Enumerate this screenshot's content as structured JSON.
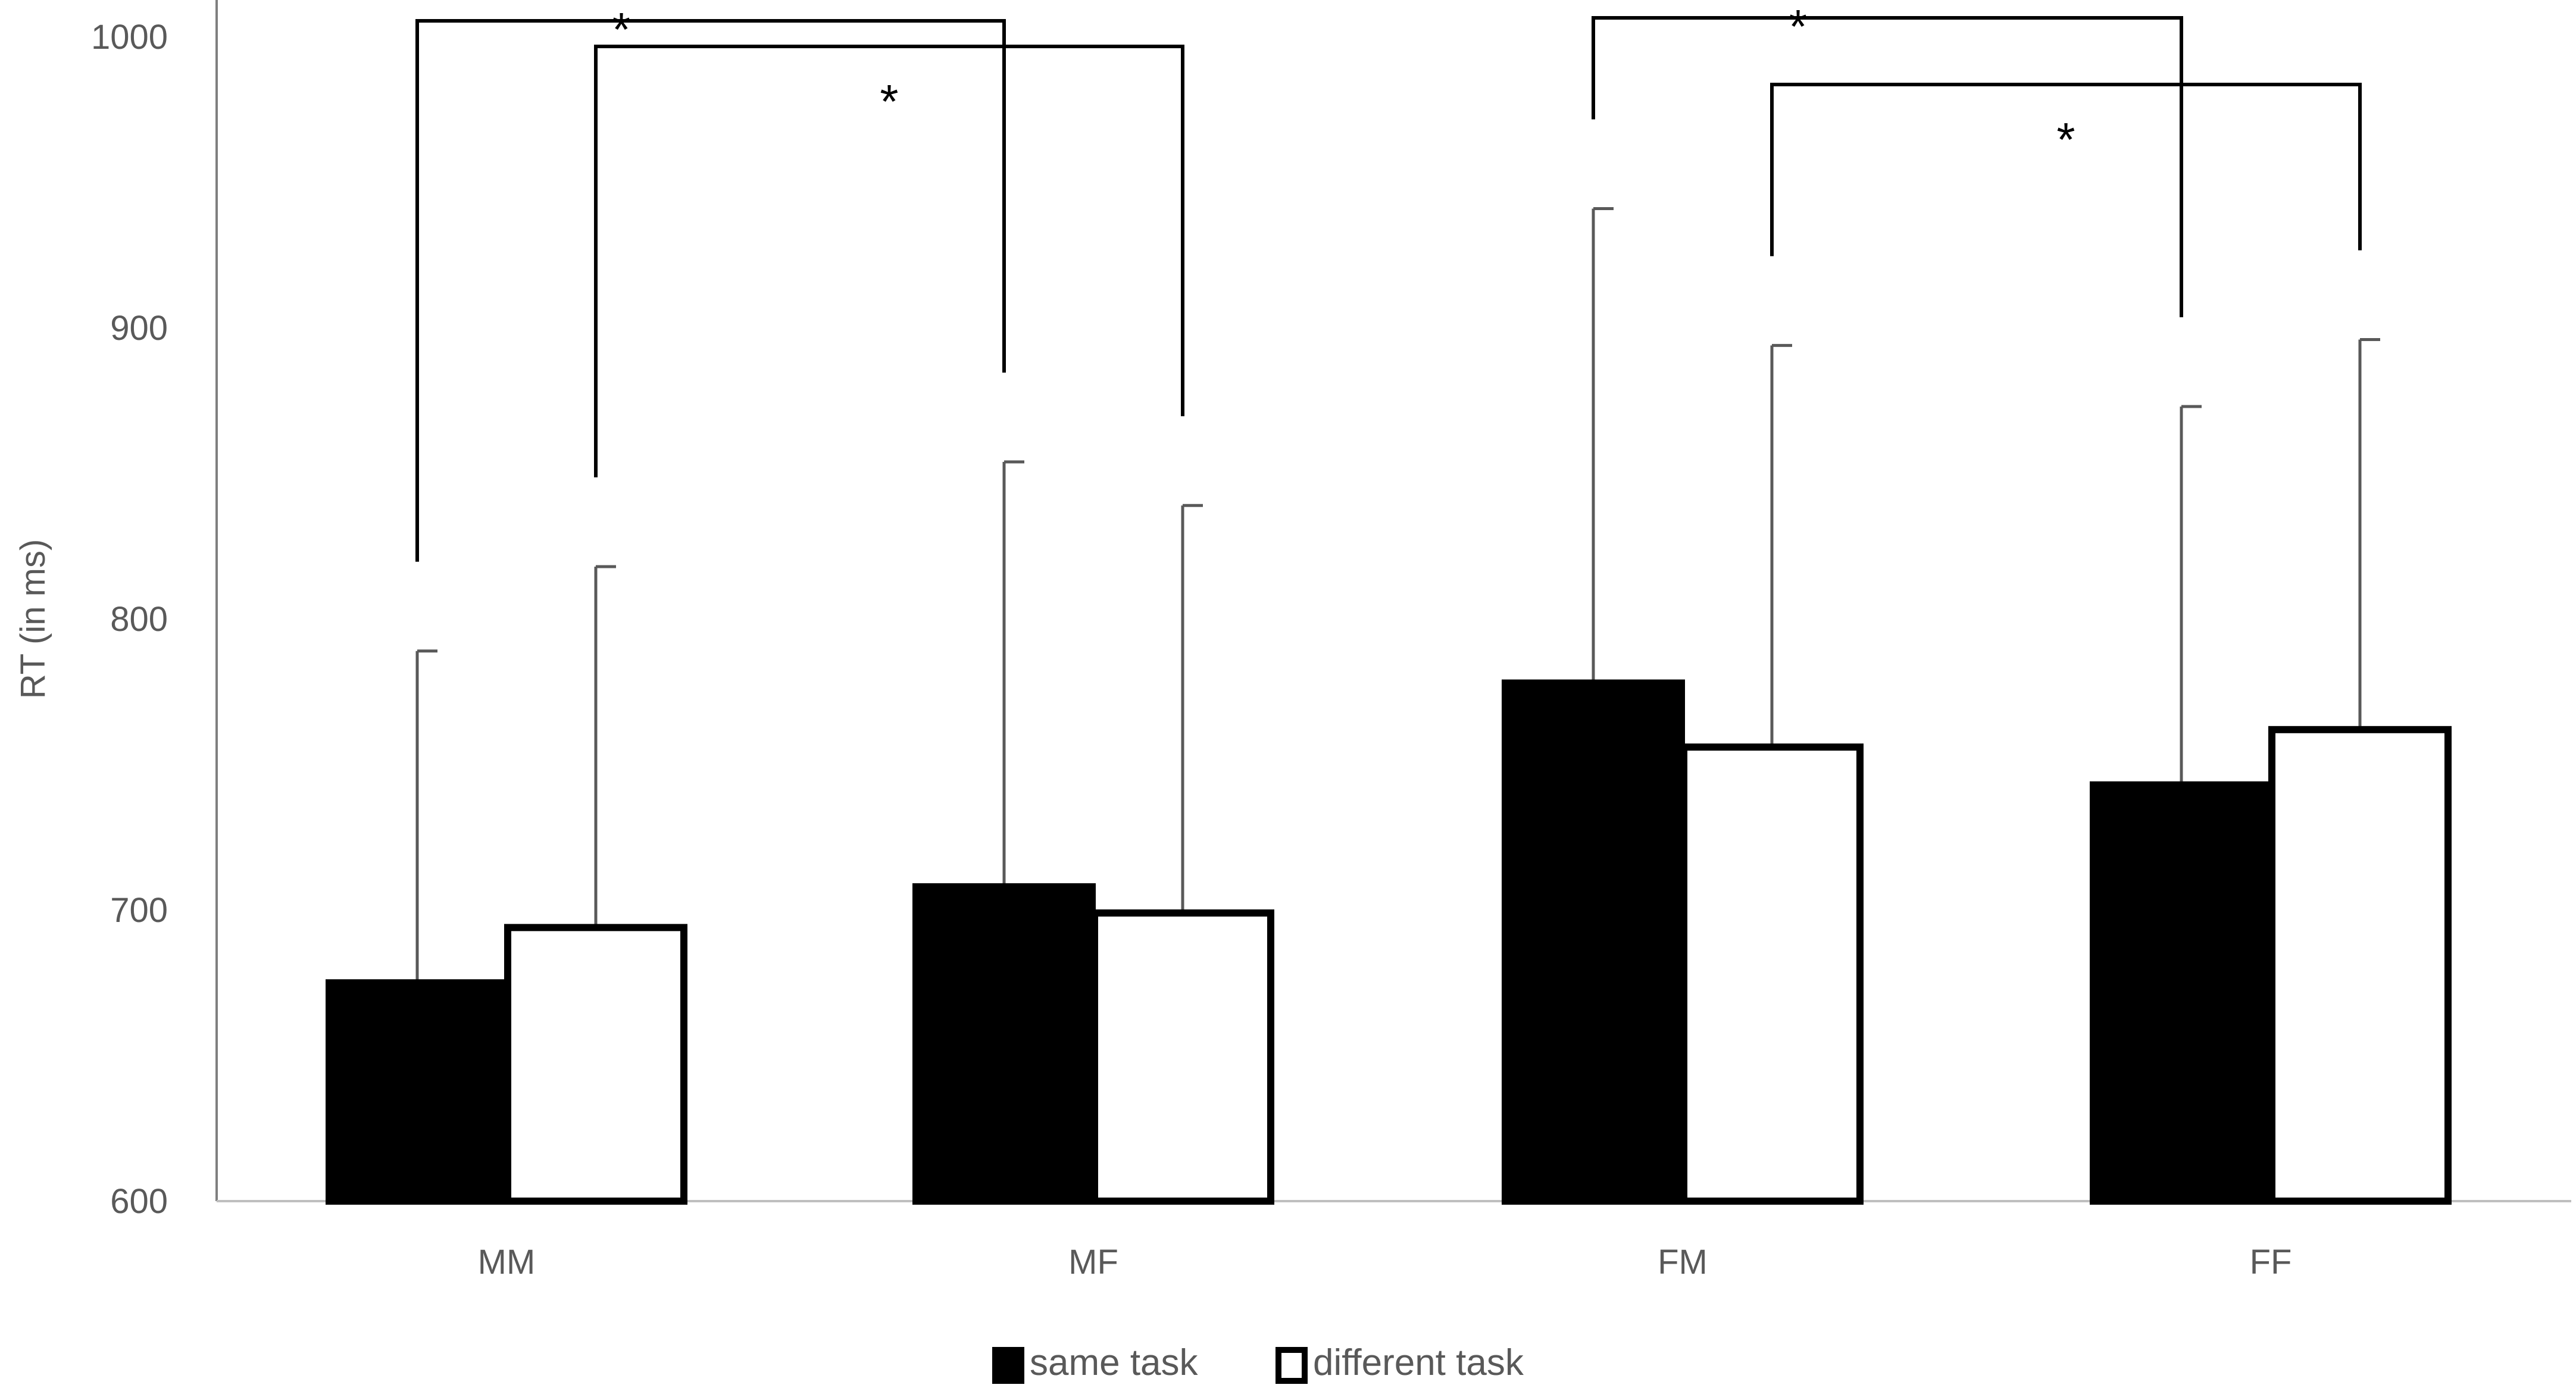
{
  "chart_data": {
    "type": "bar",
    "title": "",
    "xlabel": "",
    "ylabel": "RT (in ms)",
    "ylim": [
      600,
      1000
    ],
    "yticks": [
      600,
      700,
      800,
      900,
      1000
    ],
    "grid": false,
    "legend_position": "bottom-center",
    "categories": [
      "MM",
      "MF",
      "FM",
      "FF"
    ],
    "series": [
      {
        "name": "same task",
        "fill": "#000000",
        "values": [
          675,
          708,
          778,
          743
        ],
        "error_upper": [
          789,
          854,
          941,
          873
        ]
      },
      {
        "name": "different task",
        "fill": "#ffffff",
        "values": [
          694,
          699,
          756,
          762
        ],
        "error_upper": [
          818,
          839,
          894,
          896
        ]
      }
    ],
    "significance": [
      {
        "from": [
          "MM",
          "same task"
        ],
        "to": [
          "MF",
          "same task"
        ],
        "label": "*"
      },
      {
        "from": [
          "MM",
          "different task"
        ],
        "to": [
          "MF",
          "different task"
        ],
        "label": "*"
      },
      {
        "from": [
          "FM",
          "same task"
        ],
        "to": [
          "FF",
          "same task"
        ],
        "label": "*"
      },
      {
        "from": [
          "FM",
          "different task"
        ],
        "to": [
          "FF",
          "different task"
        ],
        "label": "*"
      }
    ]
  }
}
